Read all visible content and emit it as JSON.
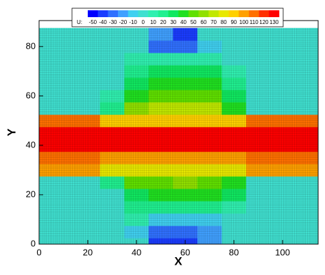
{
  "chart_data": {
    "type": "contour",
    "xlabel": "X",
    "ylabel": "Y",
    "xlim": [
      0,
      114.6
    ],
    "ylim": [
      0,
      90.5
    ],
    "xticks": [
      0,
      20,
      40,
      60,
      80,
      100
    ],
    "yticks": [
      0,
      20,
      40,
      60,
      80
    ],
    "mesh": true,
    "colorbar_label": "U:",
    "levels": [
      -50,
      -40,
      -30,
      -20,
      -10,
      0,
      10,
      20,
      30,
      40,
      50,
      60,
      70,
      80,
      90,
      100,
      110,
      120,
      130
    ],
    "colors": [
      "#0000ff",
      "#1a3cff",
      "#3070ff",
      "#40a0ff",
      "#40d0f0",
      "#40e0d0",
      "#30f0b0",
      "#20f090",
      "#10e860",
      "#20e020",
      "#60e000",
      "#90e000",
      "#c0e800",
      "#e8e800",
      "#ffd000",
      "#ffa000",
      "#ff7000",
      "#ff3000",
      "#ff0000"
    ],
    "x": [
      0,
      10,
      20,
      30,
      40,
      50,
      60,
      70,
      80,
      90,
      100,
      110
    ],
    "y": [
      0,
      5,
      10,
      15,
      20,
      25,
      30,
      35,
      40,
      45,
      50,
      55,
      60,
      65,
      70,
      75,
      80,
      85
    ],
    "z": [
      [
        0,
        0,
        0,
        0,
        0,
        -40,
        -40,
        -20,
        0,
        0,
        0,
        0
      ],
      [
        0,
        0,
        0,
        0,
        -10,
        -30,
        -30,
        -20,
        0,
        0,
        0,
        0
      ],
      [
        0,
        0,
        0,
        0,
        10,
        -10,
        -10,
        -10,
        0,
        0,
        0,
        0
      ],
      [
        0,
        0,
        0,
        0,
        20,
        20,
        20,
        20,
        10,
        0,
        0,
        0
      ],
      [
        0,
        0,
        0,
        0,
        30,
        40,
        40,
        40,
        30,
        0,
        0,
        0
      ],
      [
        0,
        0,
        0,
        20,
        50,
        50,
        60,
        50,
        40,
        0,
        0,
        0
      ],
      [
        100,
        100,
        100,
        80,
        80,
        80,
        80,
        80,
        80,
        100,
        100,
        100
      ],
      [
        110,
        110,
        110,
        100,
        100,
        100,
        100,
        100,
        100,
        110,
        110,
        110
      ],
      [
        130,
        130,
        130,
        130,
        130,
        130,
        130,
        130,
        130,
        130,
        130,
        130
      ],
      [
        130,
        130,
        130,
        130,
        130,
        130,
        130,
        130,
        130,
        130,
        130,
        130
      ],
      [
        110,
        110,
        110,
        90,
        90,
        90,
        90,
        90,
        90,
        110,
        110,
        110
      ],
      [
        0,
        0,
        0,
        20,
        60,
        70,
        70,
        70,
        40,
        0,
        0,
        0
      ],
      [
        0,
        0,
        0,
        10,
        40,
        50,
        50,
        50,
        30,
        0,
        0,
        0
      ],
      [
        0,
        0,
        0,
        0,
        30,
        40,
        40,
        40,
        20,
        0,
        0,
        0
      ],
      [
        0,
        0,
        0,
        0,
        20,
        30,
        30,
        30,
        10,
        0,
        0,
        0
      ],
      [
        0,
        0,
        0,
        0,
        10,
        10,
        10,
        10,
        0,
        0,
        0,
        0
      ],
      [
        0,
        0,
        0,
        0,
        0,
        -30,
        -30,
        -10,
        0,
        0,
        0,
        0
      ],
      [
        0,
        0,
        0,
        0,
        0,
        -20,
        -40,
        0,
        0,
        0,
        0,
        0
      ]
    ]
  }
}
